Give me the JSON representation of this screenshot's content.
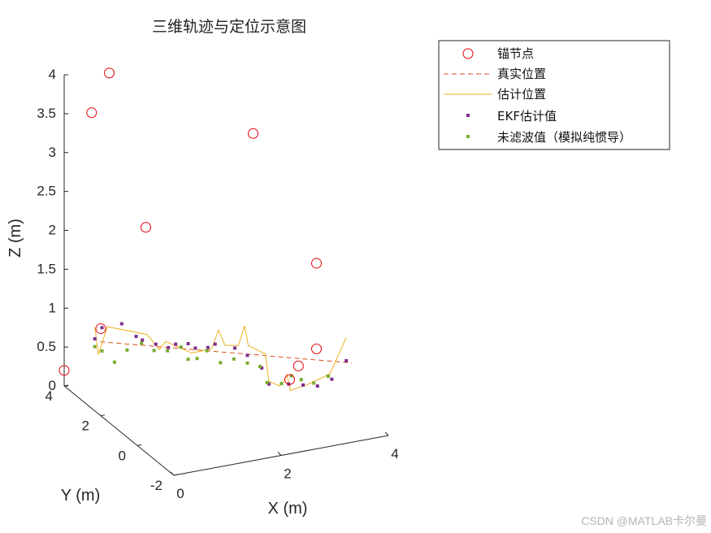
{
  "chart_data": {
    "type": "scatter3d",
    "title": "三维轨迹与定位示意图",
    "xlabel": "X (m)",
    "ylabel": "Y (m)",
    "zlabel": "Z (m)",
    "xlim": [
      0,
      4
    ],
    "ylim": [
      -2,
      4
    ],
    "zlim": [
      0,
      4
    ],
    "xticks": [
      "0",
      "2",
      "4"
    ],
    "yticks": [
      "-2",
      "0",
      "2",
      "4"
    ],
    "zticks": [
      "0",
      "0.5",
      "1",
      "1.5",
      "2",
      "2.5",
      "3",
      "3.5",
      "4"
    ],
    "grid": false,
    "legend_position": "top-right",
    "legend": [
      "锚节点",
      "真实位置",
      "估计位置",
      "EKF估计值",
      "未滤波值（模拟纯惯导）"
    ],
    "colors": {
      "anchor": "#e8000b",
      "true": "#d95319",
      "estimated": "#edb120",
      "ekf": "#7e2f8e",
      "raw": "#77ac30"
    },
    "series": [
      {
        "name": "锚节点",
        "style": "circle",
        "points": [
          [
            0,
            4,
            0.2
          ],
          [
            0,
            2,
            1.12
          ],
          [
            0,
            2.5,
            3.8
          ],
          [
            0.5,
            3,
            4.15
          ],
          [
            0.5,
            1,
            2.55
          ],
          [
            2.5,
            1,
            3.5
          ],
          [
            3,
            -1,
            2.15
          ],
          [
            3,
            -1,
            1.05
          ],
          [
            2.5,
            -1,
            0.72
          ],
          [
            2.8,
            -0.6,
            0.78
          ]
        ]
      },
      {
        "name": "真实位置",
        "style": "dashed",
        "points": [
          [
            0.5,
            3.5,
            0.6
          ],
          [
            4,
            0,
            0.55
          ]
        ]
      },
      {
        "name": "估计位置",
        "style": "solid",
        "points": [
          [
            0.4,
            3.5,
            0.8
          ],
          [
            0.45,
            3.45,
            0.45
          ],
          [
            0.6,
            3.4,
            0.8
          ],
          [
            1.2,
            3.0,
            0.7
          ],
          [
            1.4,
            2.9,
            0.5
          ],
          [
            1.5,
            2.85,
            0.6
          ],
          [
            1.9,
            2.6,
            0.45
          ],
          [
            2.2,
            2.4,
            0.5
          ],
          [
            2.3,
            2.3,
            0.75
          ],
          [
            2.4,
            2.25,
            0.55
          ],
          [
            2.6,
            2.1,
            0.55
          ],
          [
            2.7,
            2.05,
            0.8
          ],
          [
            2.75,
            2.0,
            0.55
          ],
          [
            3.0,
            1.8,
            0.45
          ],
          [
            3.05,
            1.75,
            0.1
          ],
          [
            3.2,
            1.6,
            0.05
          ],
          [
            3.25,
            1.55,
            0.1
          ],
          [
            3.3,
            1.5,
            0.2
          ],
          [
            3.35,
            1.45,
            0.0
          ],
          [
            3.6,
            1.2,
            0.1
          ],
          [
            3.9,
            0.9,
            0.25
          ],
          [
            4.1,
            0.6,
            0.75
          ]
        ]
      },
      {
        "name": "EKF估计值",
        "style": "square",
        "points": [
          [
            0.4,
            3.5,
            0.65
          ],
          [
            0.5,
            3.4,
            0.8
          ],
          [
            0.8,
            3.2,
            0.85
          ],
          [
            1.0,
            3.0,
            0.7
          ],
          [
            1.1,
            2.95,
            0.65
          ],
          [
            1.3,
            2.8,
            0.6
          ],
          [
            1.5,
            2.7,
            0.55
          ],
          [
            1.6,
            2.6,
            0.6
          ],
          [
            1.8,
            2.5,
            0.6
          ],
          [
            1.9,
            2.4,
            0.55
          ],
          [
            2.1,
            2.3,
            0.55
          ],
          [
            2.2,
            2.2,
            0.6
          ],
          [
            2.5,
            2.0,
            0.55
          ],
          [
            2.7,
            1.9,
            0.45
          ],
          [
            2.9,
            1.7,
            0.3
          ],
          [
            3.0,
            1.6,
            0.1
          ],
          [
            3.3,
            1.4,
            0.1
          ],
          [
            3.5,
            1.2,
            0.1
          ],
          [
            3.7,
            1.0,
            0.1
          ],
          [
            3.9,
            0.8,
            0.2
          ],
          [
            4.1,
            0.6,
            0.45
          ]
        ]
      },
      {
        "name": "未滤波值（模拟纯惯导）",
        "style": "square",
        "points": [
          [
            0.4,
            3.5,
            0.55
          ],
          [
            0.5,
            3.4,
            0.5
          ],
          [
            0.7,
            3.3,
            0.35
          ],
          [
            0.9,
            3.2,
            0.5
          ],
          [
            1.1,
            3.0,
            0.6
          ],
          [
            1.3,
            2.9,
            0.5
          ],
          [
            1.5,
            2.75,
            0.5
          ],
          [
            1.7,
            2.6,
            0.55
          ],
          [
            1.8,
            2.5,
            0.4
          ],
          [
            1.95,
            2.45,
            0.4
          ],
          [
            2.1,
            2.35,
            0.5
          ],
          [
            2.3,
            2.2,
            0.35
          ],
          [
            2.5,
            2.05,
            0.4
          ],
          [
            2.7,
            1.9,
            0.35
          ],
          [
            2.9,
            1.8,
            0.3
          ],
          [
            3.0,
            1.7,
            0.1
          ],
          [
            3.2,
            1.5,
            0.1
          ],
          [
            3.35,
            1.4,
            0.2
          ],
          [
            3.5,
            1.3,
            0.15
          ],
          [
            3.7,
            1.2,
            0.1
          ],
          [
            3.9,
            1.0,
            0.2
          ]
        ]
      }
    ]
  },
  "watermark": "CSDN @MATLAB卡尔曼"
}
